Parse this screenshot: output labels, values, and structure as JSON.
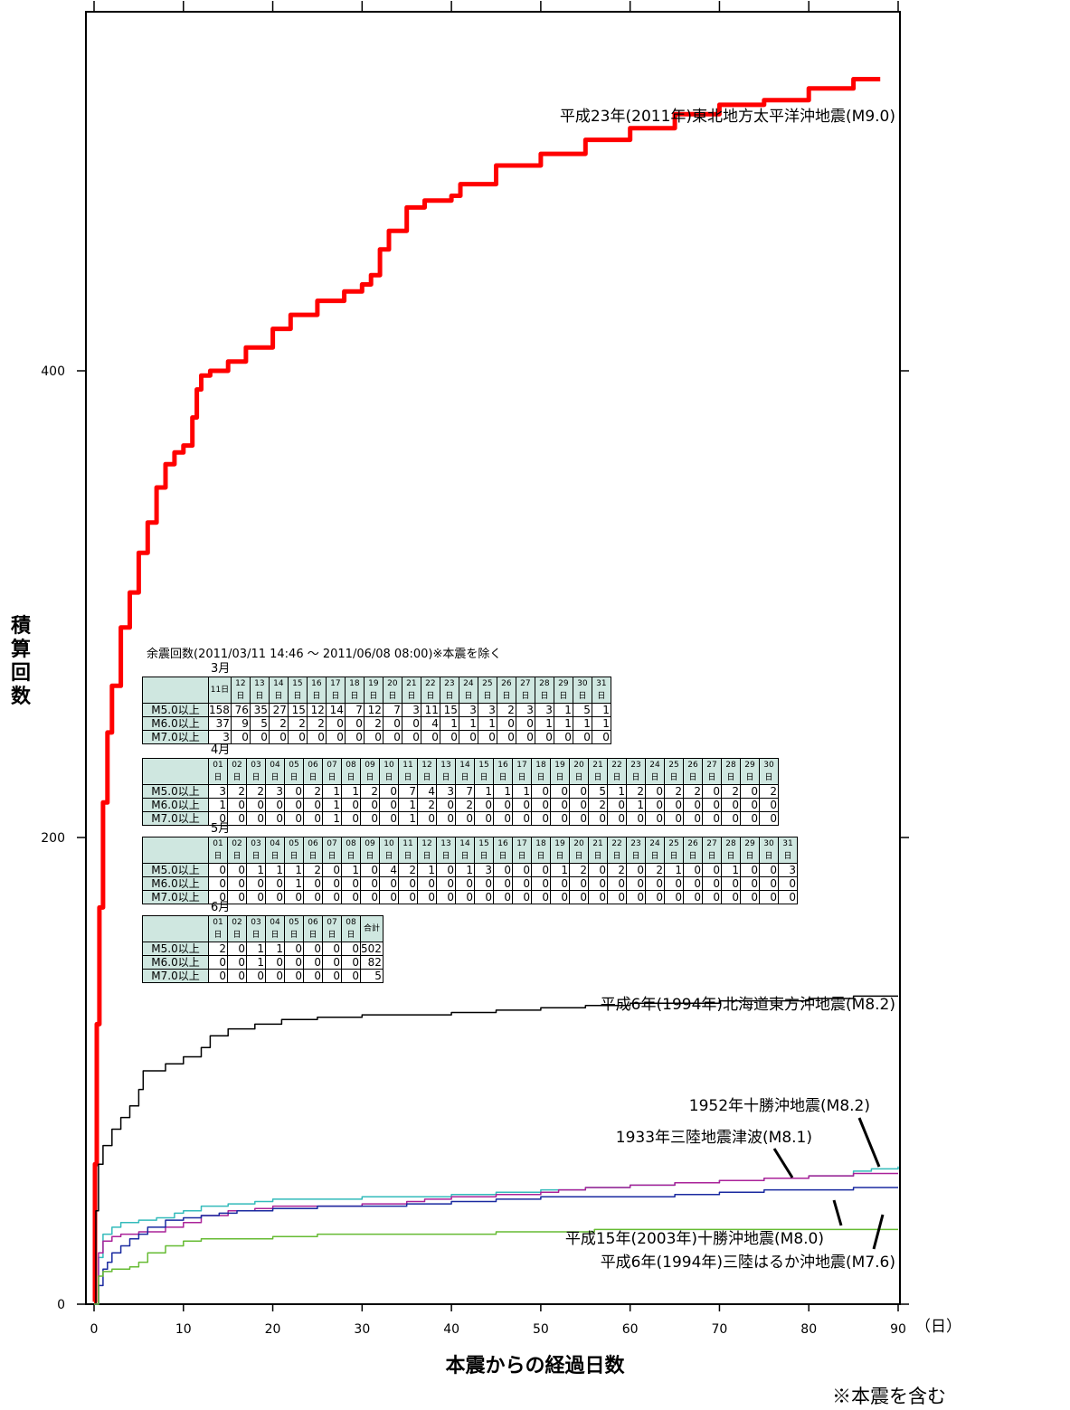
{
  "chart_data": {
    "type": "line",
    "xlabel": "本震からの経過日数",
    "xunit": "（日）",
    "ylabel": "積算回数",
    "xlim": [
      0,
      90
    ],
    "ylim": [
      0,
      520
    ],
    "xticks": [
      "0",
      "10",
      "20",
      "30",
      "40",
      "50",
      "60",
      "70",
      "80",
      "90"
    ],
    "yticks": [
      "0",
      "200",
      "400"
    ],
    "series": [
      {
        "name": "平成23年(2011年)東北地方太平洋沖地震(M9.0)",
        "color": "#ff0000",
        "width": 5,
        "x": [
          0,
          0.1,
          0.3,
          0.6,
          1,
          1.5,
          2,
          3,
          4,
          5,
          6,
          7,
          8,
          9,
          10,
          11,
          11.5,
          12,
          13,
          15,
          17,
          20,
          22,
          25,
          28,
          30,
          31,
          32,
          33,
          35,
          37,
          40,
          41,
          45,
          50,
          55,
          60,
          65,
          70,
          75,
          80,
          85,
          88
        ],
        "y": [
          1,
          60,
          120,
          170,
          215,
          245,
          265,
          290,
          305,
          322,
          335,
          350,
          360,
          365,
          368,
          380,
          392,
          398,
          400,
          404,
          410,
          418,
          424,
          430,
          434,
          437,
          441,
          452,
          460,
          470,
          473,
          475,
          480,
          488,
          493,
          499,
          504,
          510,
          514,
          516,
          521,
          525,
          525
        ]
      },
      {
        "name": "平成6年(1994年)北海道東方沖地震(M8.2)",
        "color": "#000000",
        "width": 1.5,
        "x": [
          0,
          0.2,
          0.5,
          1,
          2,
          3,
          4,
          5,
          5.5,
          8,
          10,
          12,
          13,
          15,
          18,
          21,
          25,
          30,
          35,
          40,
          45,
          50,
          55,
          60,
          65,
          70,
          75,
          80,
          85,
          88,
          90
        ],
        "y": [
          0,
          40,
          60,
          68,
          75,
          80,
          85,
          92,
          100,
          103,
          106,
          110,
          115,
          118,
          120,
          122,
          123,
          124,
          124,
          125,
          126,
          127,
          128,
          129,
          129,
          130,
          130,
          131,
          132,
          132,
          132
        ]
      },
      {
        "name": "1952年十勝沖地震(M8.2)",
        "color": "#33bbbb",
        "width": 1.5,
        "x": [
          0,
          0.5,
          1,
          2,
          3,
          5,
          7,
          9,
          10,
          12,
          15,
          18,
          20,
          25,
          30,
          35,
          40,
          45,
          50,
          55,
          60,
          65,
          70,
          75,
          80,
          85,
          87,
          90
        ],
        "y": [
          0,
          20,
          30,
          33,
          35,
          36,
          37,
          39,
          40,
          42,
          43,
          44,
          45,
          45,
          46,
          46,
          47,
          48,
          49,
          50,
          51,
          52,
          53,
          54,
          55,
          57,
          58,
          59
        ]
      },
      {
        "name": "1933年三陸地震津波(M8.1)",
        "color": "#aa2299",
        "width": 1.5,
        "x": [
          0,
          0.5,
          1,
          2,
          3,
          5,
          8,
          10,
          12,
          15,
          18,
          20,
          25,
          30,
          35,
          37,
          40,
          45,
          50,
          52,
          55,
          60,
          65,
          70,
          75,
          80,
          85,
          90
        ],
        "y": [
          0,
          22,
          27,
          29,
          30,
          31,
          33,
          35,
          38,
          40,
          41,
          42,
          42,
          43,
          44,
          45,
          46,
          47,
          48,
          49,
          50,
          51,
          52,
          53,
          54,
          55,
          56,
          56
        ]
      },
      {
        "name": "平成15年(2003年)十勝沖地震(M8.0)",
        "color": "#1a2aa0",
        "width": 1.5,
        "x": [
          0,
          0.5,
          1,
          1.5,
          2,
          3,
          4,
          5,
          6,
          8,
          10,
          12,
          14,
          16,
          20,
          25,
          30,
          35,
          40,
          45,
          50,
          55,
          60,
          65,
          70,
          75,
          80,
          85,
          90
        ],
        "y": [
          0,
          8,
          15,
          18,
          22,
          25,
          28,
          30,
          33,
          36,
          37,
          38,
          39,
          40,
          41,
          42,
          42,
          43,
          44,
          45,
          46,
          46,
          46,
          47,
          48,
          49,
          49,
          50,
          50
        ]
      },
      {
        "name": "平成6年(1994年)三陸はるか沖地震(M7.6)",
        "color": "#66bb33",
        "width": 1.5,
        "x": [
          0,
          0.5,
          1,
          2,
          3,
          4,
          5,
          6,
          8,
          10,
          12,
          15,
          20,
          25,
          30,
          40,
          45,
          50,
          55,
          56,
          60,
          70,
          80,
          90
        ],
        "y": [
          0,
          12,
          14,
          15,
          15,
          16,
          18,
          22,
          25,
          27,
          28,
          28,
          29,
          30,
          30,
          30,
          31,
          31,
          31,
          32,
          32,
          32,
          32,
          32
        ]
      }
    ],
    "annotations": [
      {
        "text": "平成23年(2011年)東北地方太平洋沖地震(M9.0)"
      },
      {
        "text": "平成6年(1994年)北海道東方沖地震(M8.2)"
      },
      {
        "text": "1952年十勝沖地震(M8.2)"
      },
      {
        "text": "1933年三陸地震津波(M8.1)"
      },
      {
        "text": "平成15年(2003年)十勝沖地震(M8.0)"
      },
      {
        "text": "平成6年(1994年)三陸はるか沖地震(M7.6)"
      }
    ]
  },
  "aftershock_tables": {
    "title": "余震回数(2011/03/11 14:46 ～ 2011/06/08 08:00)※本震を除く",
    "row_labels": [
      "M5.0以上",
      "M6.0以上",
      "M7.0以上"
    ],
    "months": [
      {
        "label": "3月",
        "days": [
          "11日",
          "12日",
          "13日",
          "14日",
          "15日",
          "16日",
          "17日",
          "18日",
          "19日",
          "20日",
          "21日",
          "22日",
          "23日",
          "24日",
          "25日",
          "26日",
          "27日",
          "28日",
          "29日",
          "30日",
          "31日"
        ],
        "rows": [
          [
            "158",
            "76",
            "35",
            "27",
            "15",
            "12",
            "14",
            "7",
            "12",
            "7",
            "3",
            "11",
            "15",
            "3",
            "3",
            "2",
            "3",
            "3",
            "1",
            "5",
            "1"
          ],
          [
            "37",
            "9",
            "5",
            "2",
            "2",
            "2",
            "0",
            "0",
            "2",
            "0",
            "0",
            "4",
            "1",
            "1",
            "1",
            "0",
            "0",
            "1",
            "1",
            "1",
            "1"
          ],
          [
            "3",
            "0",
            "0",
            "0",
            "0",
            "0",
            "0",
            "0",
            "0",
            "0",
            "0",
            "0",
            "0",
            "0",
            "0",
            "0",
            "0",
            "0",
            "0",
            "0",
            "0"
          ]
        ]
      },
      {
        "label": "4月",
        "days": [
          "01日",
          "02日",
          "03日",
          "04日",
          "05日",
          "06日",
          "07日",
          "08日",
          "09日",
          "10日",
          "11日",
          "12日",
          "13日",
          "14日",
          "15日",
          "16日",
          "17日",
          "18日",
          "19日",
          "20日",
          "21日",
          "22日",
          "23日",
          "24日",
          "25日",
          "26日",
          "27日",
          "28日",
          "29日",
          "30日"
        ],
        "rows": [
          [
            "3",
            "2",
            "2",
            "3",
            "0",
            "2",
            "1",
            "1",
            "2",
            "0",
            "7",
            "4",
            "3",
            "7",
            "1",
            "1",
            "1",
            "0",
            "0",
            "0",
            "5",
            "1",
            "2",
            "0",
            "2",
            "2",
            "0",
            "2",
            "0",
            "2"
          ],
          [
            "1",
            "0",
            "0",
            "0",
            "0",
            "0",
            "1",
            "0",
            "0",
            "0",
            "1",
            "2",
            "0",
            "2",
            "0",
            "0",
            "0",
            "0",
            "0",
            "0",
            "2",
            "0",
            "1",
            "0",
            "0",
            "0",
            "0",
            "0",
            "0",
            "0"
          ],
          [
            "0",
            "0",
            "0",
            "0",
            "0",
            "0",
            "1",
            "0",
            "0",
            "0",
            "1",
            "0",
            "0",
            "0",
            "0",
            "0",
            "0",
            "0",
            "0",
            "0",
            "0",
            "0",
            "0",
            "0",
            "0",
            "0",
            "0",
            "0",
            "0",
            "0"
          ]
        ]
      },
      {
        "label": "5月",
        "days": [
          "01日",
          "02日",
          "03日",
          "04日",
          "05日",
          "06日",
          "07日",
          "08日",
          "09日",
          "10日",
          "11日",
          "12日",
          "13日",
          "14日",
          "15日",
          "16日",
          "17日",
          "18日",
          "19日",
          "20日",
          "21日",
          "22日",
          "23日",
          "24日",
          "25日",
          "26日",
          "27日",
          "28日",
          "29日",
          "30日",
          "31日"
        ],
        "rows": [
          [
            "0",
            "0",
            "1",
            "1",
            "1",
            "2",
            "0",
            "1",
            "0",
            "4",
            "2",
            "1",
            "0",
            "1",
            "3",
            "0",
            "0",
            "0",
            "1",
            "2",
            "0",
            "2",
            "0",
            "2",
            "1",
            "0",
            "0",
            "1",
            "0",
            "0",
            "3"
          ],
          [
            "0",
            "0",
            "0",
            "0",
            "1",
            "0",
            "0",
            "0",
            "0",
            "0",
            "0",
            "0",
            "0",
            "0",
            "0",
            "0",
            "0",
            "0",
            "0",
            "0",
            "0",
            "0",
            "0",
            "0",
            "0",
            "0",
            "0",
            "0",
            "0",
            "0",
            "0"
          ],
          [
            "0",
            "0",
            "0",
            "0",
            "0",
            "0",
            "0",
            "0",
            "0",
            "0",
            "0",
            "0",
            "0",
            "0",
            "0",
            "0",
            "0",
            "0",
            "0",
            "0",
            "0",
            "0",
            "0",
            "0",
            "0",
            "0",
            "0",
            "0",
            "0",
            "0",
            "0"
          ]
        ]
      },
      {
        "label": "6月",
        "days": [
          "01日",
          "02日",
          "03日",
          "04日",
          "05日",
          "06日",
          "07日",
          "08日",
          "合計"
        ],
        "rows": [
          [
            "2",
            "0",
            "1",
            "1",
            "0",
            "0",
            "0",
            "0",
            "502"
          ],
          [
            "0",
            "0",
            "1",
            "0",
            "0",
            "0",
            "0",
            "0",
            "82"
          ],
          [
            "0",
            "0",
            "0",
            "0",
            "0",
            "0",
            "0",
            "0",
            "5"
          ]
        ]
      }
    ]
  },
  "footnote": "※本震を含む"
}
